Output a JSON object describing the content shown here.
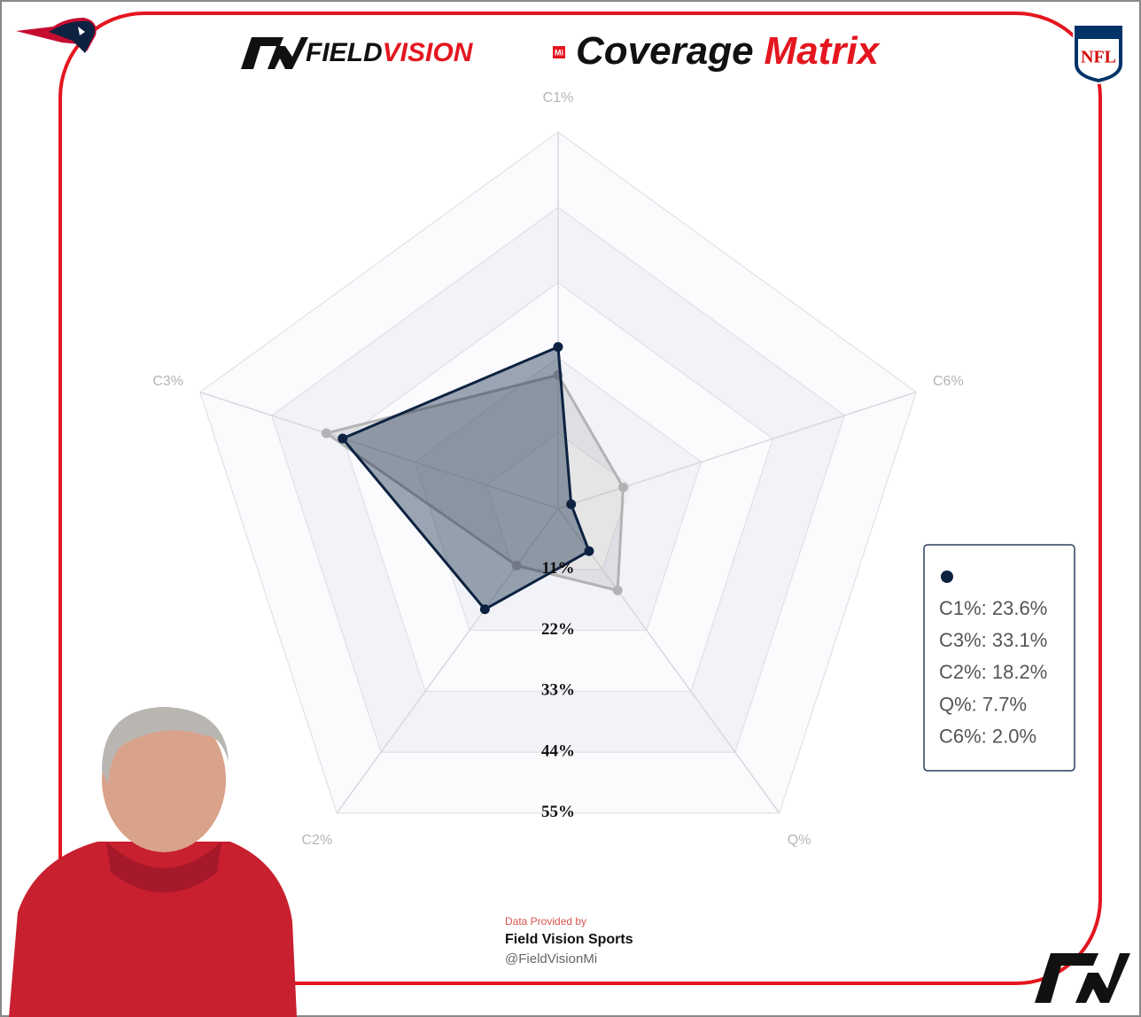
{
  "header": {
    "brand_field": "FIELD",
    "brand_vision": "VISION",
    "brand_mi": "Mi",
    "title_main": "Coverage",
    "title_accent": "Matrix",
    "league": "NFL"
  },
  "chart_data": {
    "type": "radar",
    "categories": [
      "C1%",
      "C6%",
      "Q%",
      "C2%",
      "C3%"
    ],
    "ylim": [
      0,
      55
    ],
    "yticks": [
      {
        "value": 11,
        "label": "11%"
      },
      {
        "value": 22,
        "label": "22%"
      },
      {
        "value": 33,
        "label": "33%"
      },
      {
        "value": 44,
        "label": "44%"
      },
      {
        "value": 55,
        "label": "55%"
      }
    ],
    "grid": true,
    "series": [
      {
        "color": "#b3b3b3",
        "values": [
          19.5,
          10.0,
          14.8,
          10.3,
          35.6
        ]
      },
      {
        "color": "#0d2240",
        "values": [
          23.6,
          2.0,
          7.7,
          18.2,
          33.1
        ]
      }
    ],
    "tooltip": {
      "lines": [
        "C1%: 23.6%",
        "C3%: 33.1%",
        "C2%: 18.2%",
        "Q%: 7.7%",
        "C6%: 2.0%"
      ]
    }
  },
  "footer": {
    "provided": "Data Provided by",
    "company": "Field Vision Sports",
    "handle": "@FieldVisionMi"
  }
}
